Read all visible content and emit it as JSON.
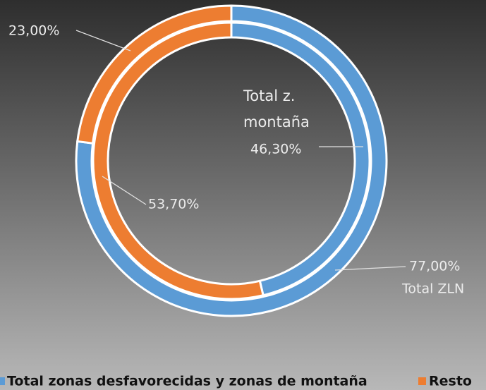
{
  "chart_data": {
    "type": "donut",
    "categories": [
      "Total zonas desfavorecidas y zonas de montaña",
      "Resto"
    ],
    "colors": [
      "#5b9bd5",
      "#ed7d31"
    ],
    "series": [
      {
        "name": "Total ZLN",
        "values": [
          77,
          23
        ],
        "value_labels": [
          "77,00%",
          "23,00%"
        ]
      },
      {
        "name": "Total z. montaña",
        "values": [
          46.3,
          53.7
        ],
        "value_labels": [
          "46,30%",
          "53,70%"
        ]
      }
    ]
  }
}
